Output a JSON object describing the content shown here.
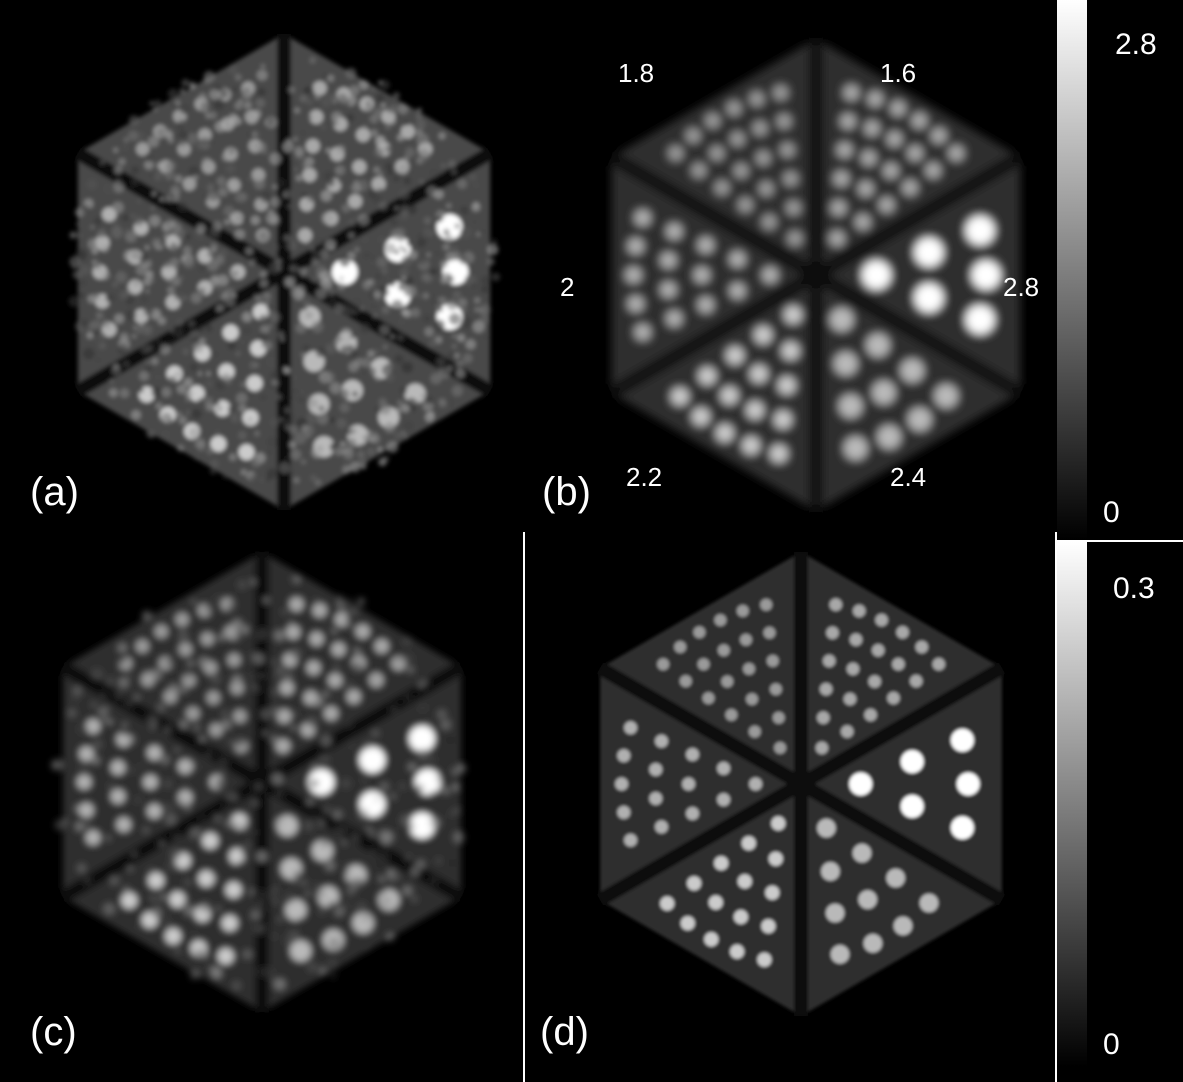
{
  "panels": [
    {
      "id": "a",
      "label": "(a)",
      "style": "noisy"
    },
    {
      "id": "b",
      "label": "(b)",
      "style": "smooth"
    },
    {
      "id": "c",
      "label": "(c)",
      "style": "medium"
    },
    {
      "id": "d",
      "label": "(d)",
      "style": "sharp"
    }
  ],
  "sector_labels": {
    "s1": "1.8",
    "s2": "1.6",
    "s3": "2",
    "s4": "2.8",
    "s5": "2.2",
    "s6": "2.4"
  },
  "colorbars": {
    "top": {
      "max": "2.8",
      "min": "0"
    },
    "bottom": {
      "max": "0.3",
      "min": "0"
    }
  },
  "sector_brightness": [
    0.42,
    0.5,
    0.55,
    1.0,
    0.7,
    0.6
  ]
}
